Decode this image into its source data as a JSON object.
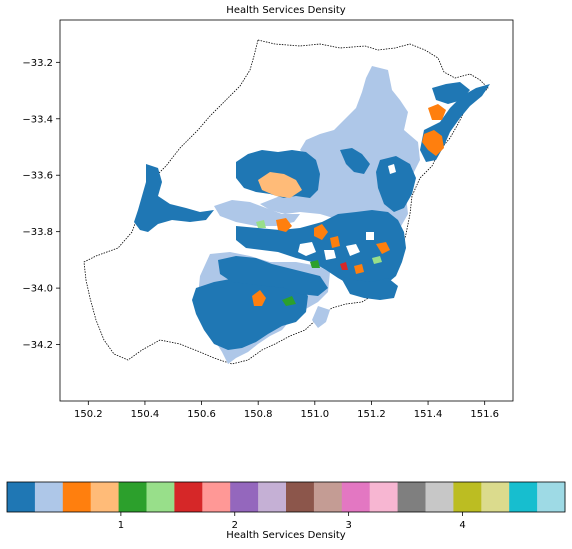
{
  "title": "Health Services Density",
  "colorbar": {
    "label": "Health Services Density",
    "ticks": [
      "1",
      "2",
      "3",
      "4"
    ],
    "swatches": [
      "#1f77b4",
      "#aec7e8",
      "#ff7f0e",
      "#ffbb78",
      "#2ca02c",
      "#98df8a",
      "#d62728",
      "#ff9896",
      "#9467bd",
      "#c5b0d5",
      "#8c564b",
      "#c49c94",
      "#e377c2",
      "#f7b6d2",
      "#7f7f7f",
      "#c7c7c7",
      "#bcbd22",
      "#dbdb8d",
      "#17becf",
      "#9edae5"
    ]
  },
  "chart_data": {
    "type": "choropleth",
    "title": "Health Services Density",
    "xlabel": "",
    "ylabel": "",
    "xlim": [
      150.1,
      151.7
    ],
    "ylim": [
      -34.4,
      -33.05
    ],
    "x_ticks": [
      "150.2",
      "150.4",
      "150.6",
      "150.8",
      "151.0",
      "151.2",
      "151.4",
      "151.6"
    ],
    "y_ticks": [
      "−33.2",
      "−33.4",
      "−33.6",
      "−33.8",
      "−34.0",
      "−34.2"
    ],
    "colormap": "tab20",
    "colorbar_ticks": [
      1,
      2,
      3,
      4
    ],
    "grid": false,
    "colors": {
      "dominant": "#1f77b4",
      "second": "#aec7e8",
      "third": "#ff7f0e",
      "boundary": "#000000"
    }
  }
}
